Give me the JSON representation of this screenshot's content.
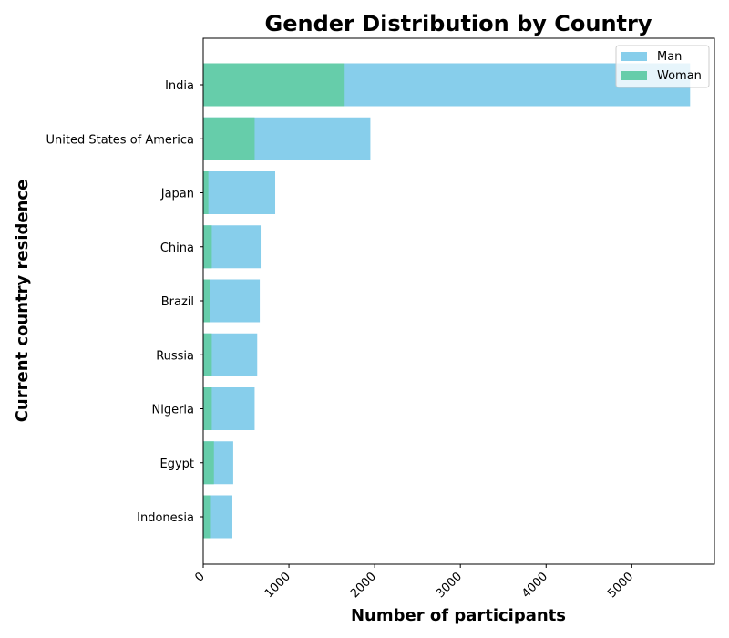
{
  "chart_data": {
    "type": "bar",
    "orientation": "horizontal",
    "stacking": "overlay",
    "title": "Gender Distribution by Country",
    "xlabel": "Number of participants",
    "ylabel": "Current country residence",
    "categories": [
      "India",
      "United States of America",
      "Japan",
      "China",
      "Brazil",
      "Russia",
      "Nigeria",
      "Egypt",
      "Indonesia"
    ],
    "series": [
      {
        "name": "Man",
        "color": "#87CEEB",
        "values": [
          5680,
          1950,
          840,
          670,
          660,
          630,
          600,
          350,
          340
        ]
      },
      {
        "name": "Woman",
        "color": "#66CDAA",
        "values": [
          1650,
          600,
          60,
          100,
          80,
          100,
          100,
          125,
          90
        ]
      }
    ],
    "xticks": [
      "0",
      "1000",
      "2000",
      "3000",
      "4000",
      "5000"
    ],
    "xlim": [
      0,
      5964
    ],
    "grid": false,
    "legend_position": "top-right"
  }
}
